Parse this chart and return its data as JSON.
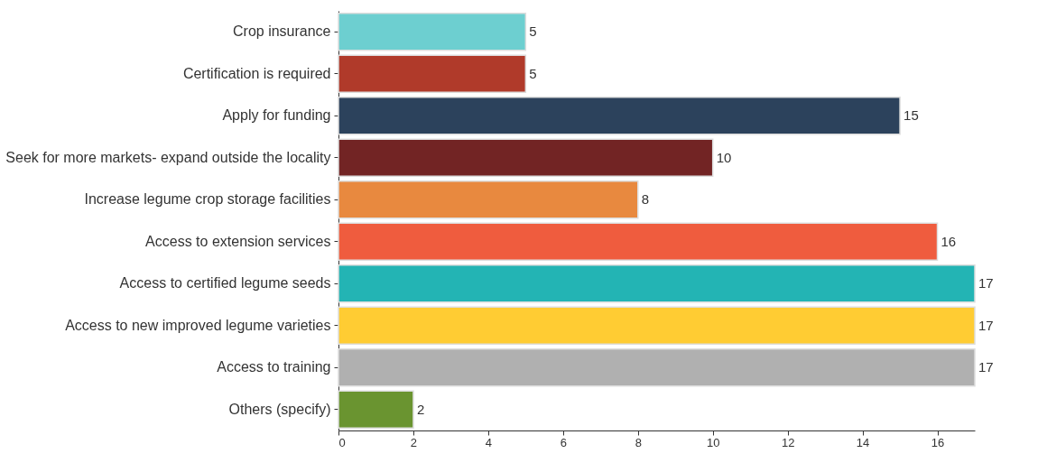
{
  "chart_data": {
    "type": "bar",
    "orientation": "horizontal",
    "categories": [
      "Crop insurance",
      "Certification is required",
      "Apply for funding",
      "Seek for more markets- expand outside the locality",
      "Increase legume crop storage facilities",
      "Access to extension services",
      "Access to certified legume seeds",
      "Access to new improved legume varieties",
      "Access to training",
      "Others (specify)"
    ],
    "values": [
      5,
      5,
      15,
      10,
      8,
      16,
      17,
      17,
      17,
      2
    ],
    "colors": [
      "#6dcfd0",
      "#b03a2a",
      "#2c425c",
      "#722424",
      "#e8893f",
      "#ef5c3e",
      "#23b4b4",
      "#ffcc33",
      "#b0b0b0",
      "#6a9430"
    ],
    "xlim": [
      0,
      17
    ],
    "xticks": [
      0,
      2,
      4,
      6,
      8,
      10,
      12,
      14,
      16
    ],
    "data_labels": true,
    "grid": false
  }
}
